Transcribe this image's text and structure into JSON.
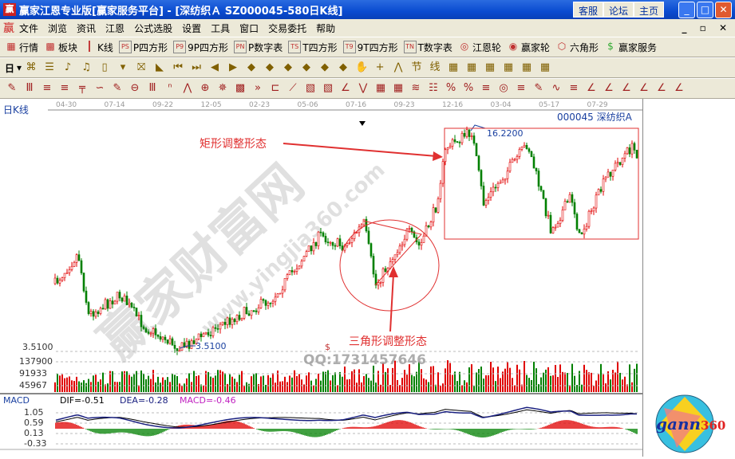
{
  "window": {
    "title": "赢家江恩专业版[赢家服务平台] - [深纺织Ａ    SZ000045-580日K线]",
    "buttons": [
      "客服",
      "论坛",
      "主页"
    ]
  },
  "menu": [
    "文件",
    "浏览",
    "资讯",
    "江恩",
    "公式选股",
    "设置",
    "工具",
    "窗口",
    "交易委托",
    "帮助"
  ],
  "toolbar1": [
    {
      "icon": "grid-icon",
      "label": "行情"
    },
    {
      "icon": "blocks-icon",
      "label": "板块"
    },
    {
      "icon": "candle-icon",
      "label": "K线"
    },
    {
      "icon": "PS",
      "label": "P四方形"
    },
    {
      "icon": "P9",
      "label": "9P四方形"
    },
    {
      "icon": "PN",
      "label": "P数字表"
    },
    {
      "icon": "TS",
      "label": "T四方形"
    },
    {
      "icon": "T9",
      "label": "9T四方形"
    },
    {
      "icon": "TN",
      "label": "T数字表"
    },
    {
      "icon": "target-icon",
      "label": "江恩轮"
    },
    {
      "icon": "big-icon",
      "label": "赢家轮"
    },
    {
      "icon": "hexagon-icon",
      "label": "六角形"
    },
    {
      "icon": "dollar-icon",
      "label": "赢家服务"
    }
  ],
  "toolbar2": {
    "period": "日"
  },
  "chart": {
    "period_label": "日K线",
    "stock_label": "000045 深纺织A",
    "dates": [
      "04-30",
      "07-14",
      "09-22",
      "12-05",
      "02-23",
      "05-06",
      "07-16",
      "09-23",
      "12-16",
      "03-04",
      "05-17",
      "07-29"
    ],
    "high_label": "16.2200",
    "low_label": "3.5100",
    "price_axis": "3.5100",
    "volume_axis": [
      "137900",
      "91933",
      "45967"
    ],
    "annotation_rect": "矩形调整形态",
    "annotation_triangle": "三角形调整形态",
    "watermark_qq": "QQ:1731457646",
    "watermark_site": "赢家财富网",
    "watermark_url": "www.yingjia360.com",
    "dollar_mark": "$",
    "colors": {
      "up": "#e00000",
      "down": "#008000",
      "annot": "#e03030"
    }
  },
  "macd": {
    "label": "MACD",
    "dif": "DIF=-0.51",
    "dea": "DEA=-0.28",
    "macd": "MACD=-0.46",
    "axis": [
      "1.05",
      "0.59",
      "0.13",
      "-0.33"
    ]
  },
  "logo": {
    "text": "gann360"
  }
}
